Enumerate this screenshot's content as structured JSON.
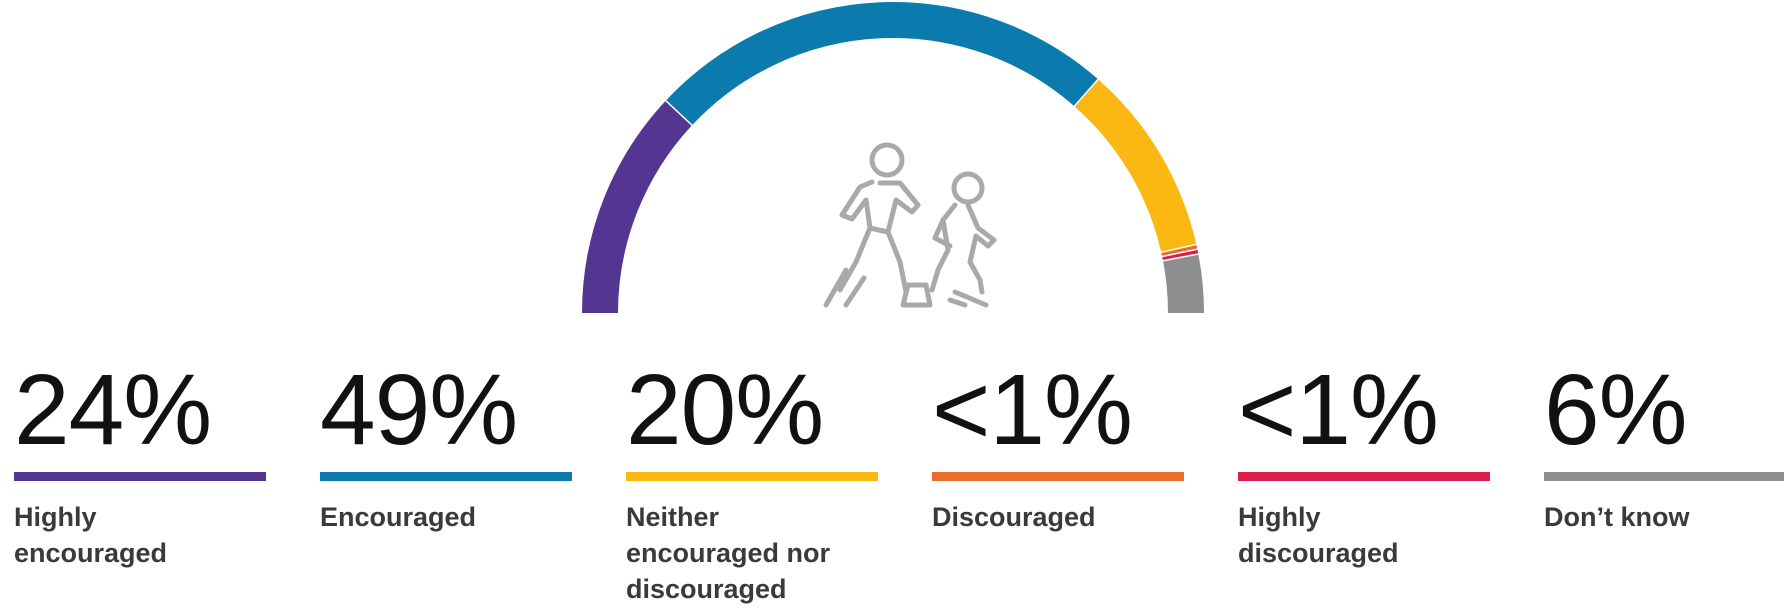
{
  "chart_data": {
    "type": "pie",
    "subtype": "half-donut",
    "title": "",
    "center_icon": "walking-adult-and-child-icon",
    "series": [
      {
        "name": "Highly encouraged",
        "display_value": "24%",
        "value": 24,
        "color": "#553592"
      },
      {
        "name": "Encouraged",
        "display_value": "49%",
        "value": 49,
        "color": "#0a7bac"
      },
      {
        "name": "Neither encouraged nor discouraged",
        "display_value": "20%",
        "value": 20,
        "color": "#fbb712"
      },
      {
        "name": "Discouraged",
        "display_value": "<1%",
        "value": 0.5,
        "color": "#ea6d2c"
      },
      {
        "name": "Highly discouraged",
        "display_value": "<1%",
        "value": 0.5,
        "color": "#dc1e4d"
      },
      {
        "name": "Don’t know",
        "display_value": "6%",
        "value": 6,
        "color": "#8c8e90"
      }
    ]
  }
}
